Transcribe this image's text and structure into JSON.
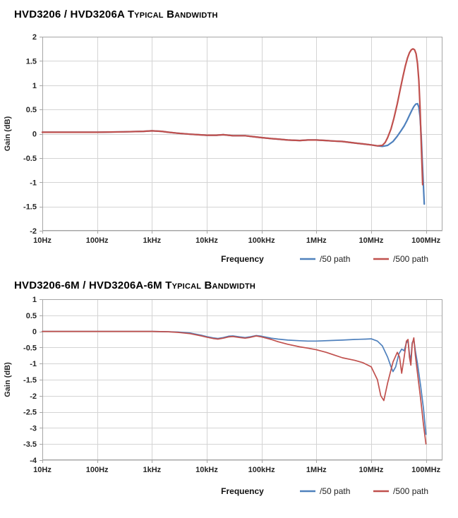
{
  "page": {
    "background": "#ffffff"
  },
  "theme": {
    "grid_color": "#d4d4d4",
    "axis_color": "#a6a6a6",
    "tick_label_color": "#262626",
    "series_blue": "#4f81bd",
    "series_red": "#c0504d"
  },
  "chart_data": [
    {
      "type": "line",
      "title": "HVD3206 / HVD3206A Typical Bandwidth",
      "xlabel": "Frequency",
      "ylabel": "Gain (dB)",
      "x_scale": "log",
      "grid": true,
      "legend_position": "bottom-right",
      "xlim": [
        10,
        200000000
      ],
      "ylim": [
        -2,
        2
      ],
      "x_ticks": {
        "values": [
          10,
          100,
          1000,
          10000,
          100000,
          1000000,
          10000000,
          100000000
        ],
        "labels": [
          "10Hz",
          "100Hz",
          "1kHz",
          "10kHz",
          "100kHz",
          "1MHz",
          "10MHz",
          "100MHz"
        ]
      },
      "y_ticks": {
        "values": [
          2,
          1.5,
          1,
          0.5,
          0,
          -0.5,
          -1,
          -1.5,
          -2
        ],
        "labels": [
          "2",
          "1.5",
          "1",
          "0.5",
          "0",
          "-0.5",
          "-1",
          "-1.5",
          "-2"
        ]
      },
      "series": [
        {
          "name": "/50 path",
          "color": "#4f81bd",
          "points": [
            [
              10,
              0.03
            ],
            [
              30,
              0.03
            ],
            [
              100,
              0.03
            ],
            [
              300,
              0.04
            ],
            [
              700,
              0.05
            ],
            [
              1000,
              0.06
            ],
            [
              1500,
              0.05
            ],
            [
              2000,
              0.03
            ],
            [
              3000,
              0.01
            ],
            [
              5000,
              -0.01
            ],
            [
              7000,
              -0.02
            ],
            [
              10000,
              -0.03
            ],
            [
              15000,
              -0.03
            ],
            [
              20000,
              -0.02
            ],
            [
              30000,
              -0.04
            ],
            [
              50000,
              -0.04
            ],
            [
              70000,
              -0.06
            ],
            [
              100000,
              -0.08
            ],
            [
              150000,
              -0.1
            ],
            [
              200000,
              -0.11
            ],
            [
              300000,
              -0.13
            ],
            [
              500000,
              -0.14
            ],
            [
              700000,
              -0.13
            ],
            [
              1000000,
              -0.13
            ],
            [
              1500000,
              -0.14
            ],
            [
              2000000,
              -0.15
            ],
            [
              3000000,
              -0.16
            ],
            [
              5000000,
              -0.19
            ],
            [
              7000000,
              -0.21
            ],
            [
              10000000,
              -0.23
            ],
            [
              13000000,
              -0.25
            ],
            [
              16000000,
              -0.26
            ],
            [
              20000000,
              -0.24
            ],
            [
              25000000,
              -0.16
            ],
            [
              30000000,
              -0.05
            ],
            [
              35000000,
              0.06
            ],
            [
              40000000,
              0.16
            ],
            [
              45000000,
              0.27
            ],
            [
              50000000,
              0.38
            ],
            [
              55000000,
              0.48
            ],
            [
              60000000,
              0.56
            ],
            [
              65000000,
              0.61
            ],
            [
              70000000,
              0.62
            ],
            [
              74000000,
              0.55
            ],
            [
              78000000,
              0.35
            ],
            [
              82000000,
              -0.05
            ],
            [
              86000000,
              -0.6
            ],
            [
              90000000,
              -1.1
            ],
            [
              93000000,
              -1.45
            ]
          ]
        },
        {
          "name": "/500 path",
          "color": "#c0504d",
          "points": [
            [
              10,
              0.03
            ],
            [
              30,
              0.03
            ],
            [
              100,
              0.03
            ],
            [
              300,
              0.04
            ],
            [
              700,
              0.05
            ],
            [
              1000,
              0.06
            ],
            [
              1500,
              0.05
            ],
            [
              2000,
              0.03
            ],
            [
              3000,
              0.01
            ],
            [
              5000,
              -0.01
            ],
            [
              7000,
              -0.02
            ],
            [
              10000,
              -0.03
            ],
            [
              15000,
              -0.03
            ],
            [
              20000,
              -0.02
            ],
            [
              30000,
              -0.04
            ],
            [
              50000,
              -0.04
            ],
            [
              70000,
              -0.06
            ],
            [
              100000,
              -0.08
            ],
            [
              150000,
              -0.1
            ],
            [
              200000,
              -0.11
            ],
            [
              300000,
              -0.13
            ],
            [
              500000,
              -0.14
            ],
            [
              700000,
              -0.13
            ],
            [
              1000000,
              -0.13
            ],
            [
              1500000,
              -0.14
            ],
            [
              2000000,
              -0.15
            ],
            [
              3000000,
              -0.16
            ],
            [
              5000000,
              -0.19
            ],
            [
              7000000,
              -0.21
            ],
            [
              10000000,
              -0.23
            ],
            [
              13000000,
              -0.25
            ],
            [
              16000000,
              -0.24
            ],
            [
              18000000,
              -0.18
            ],
            [
              20000000,
              -0.08
            ],
            [
              23000000,
              0.1
            ],
            [
              26000000,
              0.32
            ],
            [
              30000000,
              0.62
            ],
            [
              34000000,
              0.92
            ],
            [
              38000000,
              1.18
            ],
            [
              42000000,
              1.4
            ],
            [
              46000000,
              1.56
            ],
            [
              50000000,
              1.67
            ],
            [
              54000000,
              1.73
            ],
            [
              58000000,
              1.75
            ],
            [
              62000000,
              1.73
            ],
            [
              66000000,
              1.65
            ],
            [
              70000000,
              1.45
            ],
            [
              74000000,
              1.1
            ],
            [
              78000000,
              0.55
            ],
            [
              82000000,
              -0.2
            ],
            [
              85000000,
              -0.7
            ],
            [
              87000000,
              -1.05
            ]
          ]
        }
      ]
    },
    {
      "type": "line",
      "title": "HVD3206-6M / HVD3206A-6M Typical Bandwidth",
      "xlabel": "Frequency",
      "ylabel": "Gain (dB)",
      "x_scale": "log",
      "grid": true,
      "legend_position": "bottom-right",
      "xlim": [
        10,
        200000000
      ],
      "ylim": [
        -4,
        1
      ],
      "x_ticks": {
        "values": [
          10,
          100,
          1000,
          10000,
          100000,
          1000000,
          10000000,
          100000000
        ],
        "labels": [
          "10Hz",
          "100Hz",
          "1kHz",
          "10kHz",
          "100kHz",
          "1MHz",
          "10MHz",
          "100MHz"
        ]
      },
      "y_ticks": {
        "values": [
          1,
          0.5,
          0,
          -0.5,
          -1,
          -1.5,
          -2,
          -2.5,
          -3,
          -3.5,
          -4
        ],
        "labels": [
          "1",
          "0.5",
          "0",
          "-0.5",
          "-1",
          "-1.5",
          "-2",
          "-2.5",
          "-3",
          "-3.5",
          "-4"
        ]
      },
      "series": [
        {
          "name": "/50 path",
          "color": "#4f81bd",
          "points": [
            [
              10,
              0
            ],
            [
              100,
              0
            ],
            [
              500,
              0
            ],
            [
              1000,
              0
            ],
            [
              2000,
              -0.01
            ],
            [
              3000,
              -0.02
            ],
            [
              5000,
              -0.05
            ],
            [
              8000,
              -0.12
            ],
            [
              10000,
              -0.16
            ],
            [
              13000,
              -0.2
            ],
            [
              16000,
              -0.22
            ],
            [
              20000,
              -0.19
            ],
            [
              25000,
              -0.15
            ],
            [
              30000,
              -0.14
            ],
            [
              40000,
              -0.17
            ],
            [
              50000,
              -0.19
            ],
            [
              60000,
              -0.17
            ],
            [
              80000,
              -0.13
            ],
            [
              100000,
              -0.15
            ],
            [
              150000,
              -0.21
            ],
            [
              200000,
              -0.24
            ],
            [
              300000,
              -0.27
            ],
            [
              500000,
              -0.29
            ],
            [
              700000,
              -0.3
            ],
            [
              1000000,
              -0.3
            ],
            [
              2000000,
              -0.28
            ],
            [
              3000000,
              -0.27
            ],
            [
              5000000,
              -0.25
            ],
            [
              8000000,
              -0.24
            ],
            [
              10000000,
              -0.23
            ],
            [
              13000000,
              -0.3
            ],
            [
              16000000,
              -0.45
            ],
            [
              20000000,
              -0.8
            ],
            [
              23000000,
              -1.1
            ],
            [
              25000000,
              -1.25
            ],
            [
              28000000,
              -1.1
            ],
            [
              32000000,
              -0.7
            ],
            [
              36000000,
              -0.55
            ],
            [
              40000000,
              -0.6
            ],
            [
              44000000,
              -0.35
            ],
            [
              47000000,
              -0.3
            ],
            [
              50000000,
              -0.7
            ],
            [
              53000000,
              -0.9
            ],
            [
              56000000,
              -0.35
            ],
            [
              60000000,
              -0.25
            ],
            [
              64000000,
              -0.6
            ],
            [
              70000000,
              -1.0
            ],
            [
              80000000,
              -1.7
            ],
            [
              90000000,
              -2.4
            ],
            [
              100000000,
              -3.2
            ]
          ]
        },
        {
          "name": "/500 path",
          "color": "#c0504d",
          "points": [
            [
              10,
              0
            ],
            [
              100,
              0
            ],
            [
              500,
              0
            ],
            [
              1000,
              0
            ],
            [
              2000,
              -0.01
            ],
            [
              3000,
              -0.03
            ],
            [
              5000,
              -0.07
            ],
            [
              8000,
              -0.14
            ],
            [
              10000,
              -0.18
            ],
            [
              13000,
              -0.22
            ],
            [
              16000,
              -0.24
            ],
            [
              20000,
              -0.21
            ],
            [
              25000,
              -0.17
            ],
            [
              30000,
              -0.16
            ],
            [
              40000,
              -0.19
            ],
            [
              50000,
              -0.21
            ],
            [
              60000,
              -0.19
            ],
            [
              80000,
              -0.14
            ],
            [
              100000,
              -0.17
            ],
            [
              150000,
              -0.25
            ],
            [
              200000,
              -0.32
            ],
            [
              300000,
              -0.4
            ],
            [
              500000,
              -0.48
            ],
            [
              700000,
              -0.52
            ],
            [
              1000000,
              -0.57
            ],
            [
              1500000,
              -0.65
            ],
            [
              2000000,
              -0.72
            ],
            [
              3000000,
              -0.82
            ],
            [
              5000000,
              -0.9
            ],
            [
              7000000,
              -0.97
            ],
            [
              10000000,
              -1.1
            ],
            [
              13000000,
              -1.5
            ],
            [
              15000000,
              -2.0
            ],
            [
              17000000,
              -2.15
            ],
            [
              20000000,
              -1.6
            ],
            [
              25000000,
              -0.95
            ],
            [
              30000000,
              -0.65
            ],
            [
              33000000,
              -0.8
            ],
            [
              36000000,
              -1.3
            ],
            [
              40000000,
              -0.8
            ],
            [
              44000000,
              -0.3
            ],
            [
              47000000,
              -0.25
            ],
            [
              50000000,
              -0.8
            ],
            [
              53000000,
              -1.05
            ],
            [
              56000000,
              -0.4
            ],
            [
              60000000,
              -0.2
            ],
            [
              64000000,
              -0.75
            ],
            [
              70000000,
              -1.3
            ],
            [
              80000000,
              -2.1
            ],
            [
              90000000,
              -2.9
            ],
            [
              100000000,
              -3.5
            ]
          ]
        }
      ]
    }
  ]
}
